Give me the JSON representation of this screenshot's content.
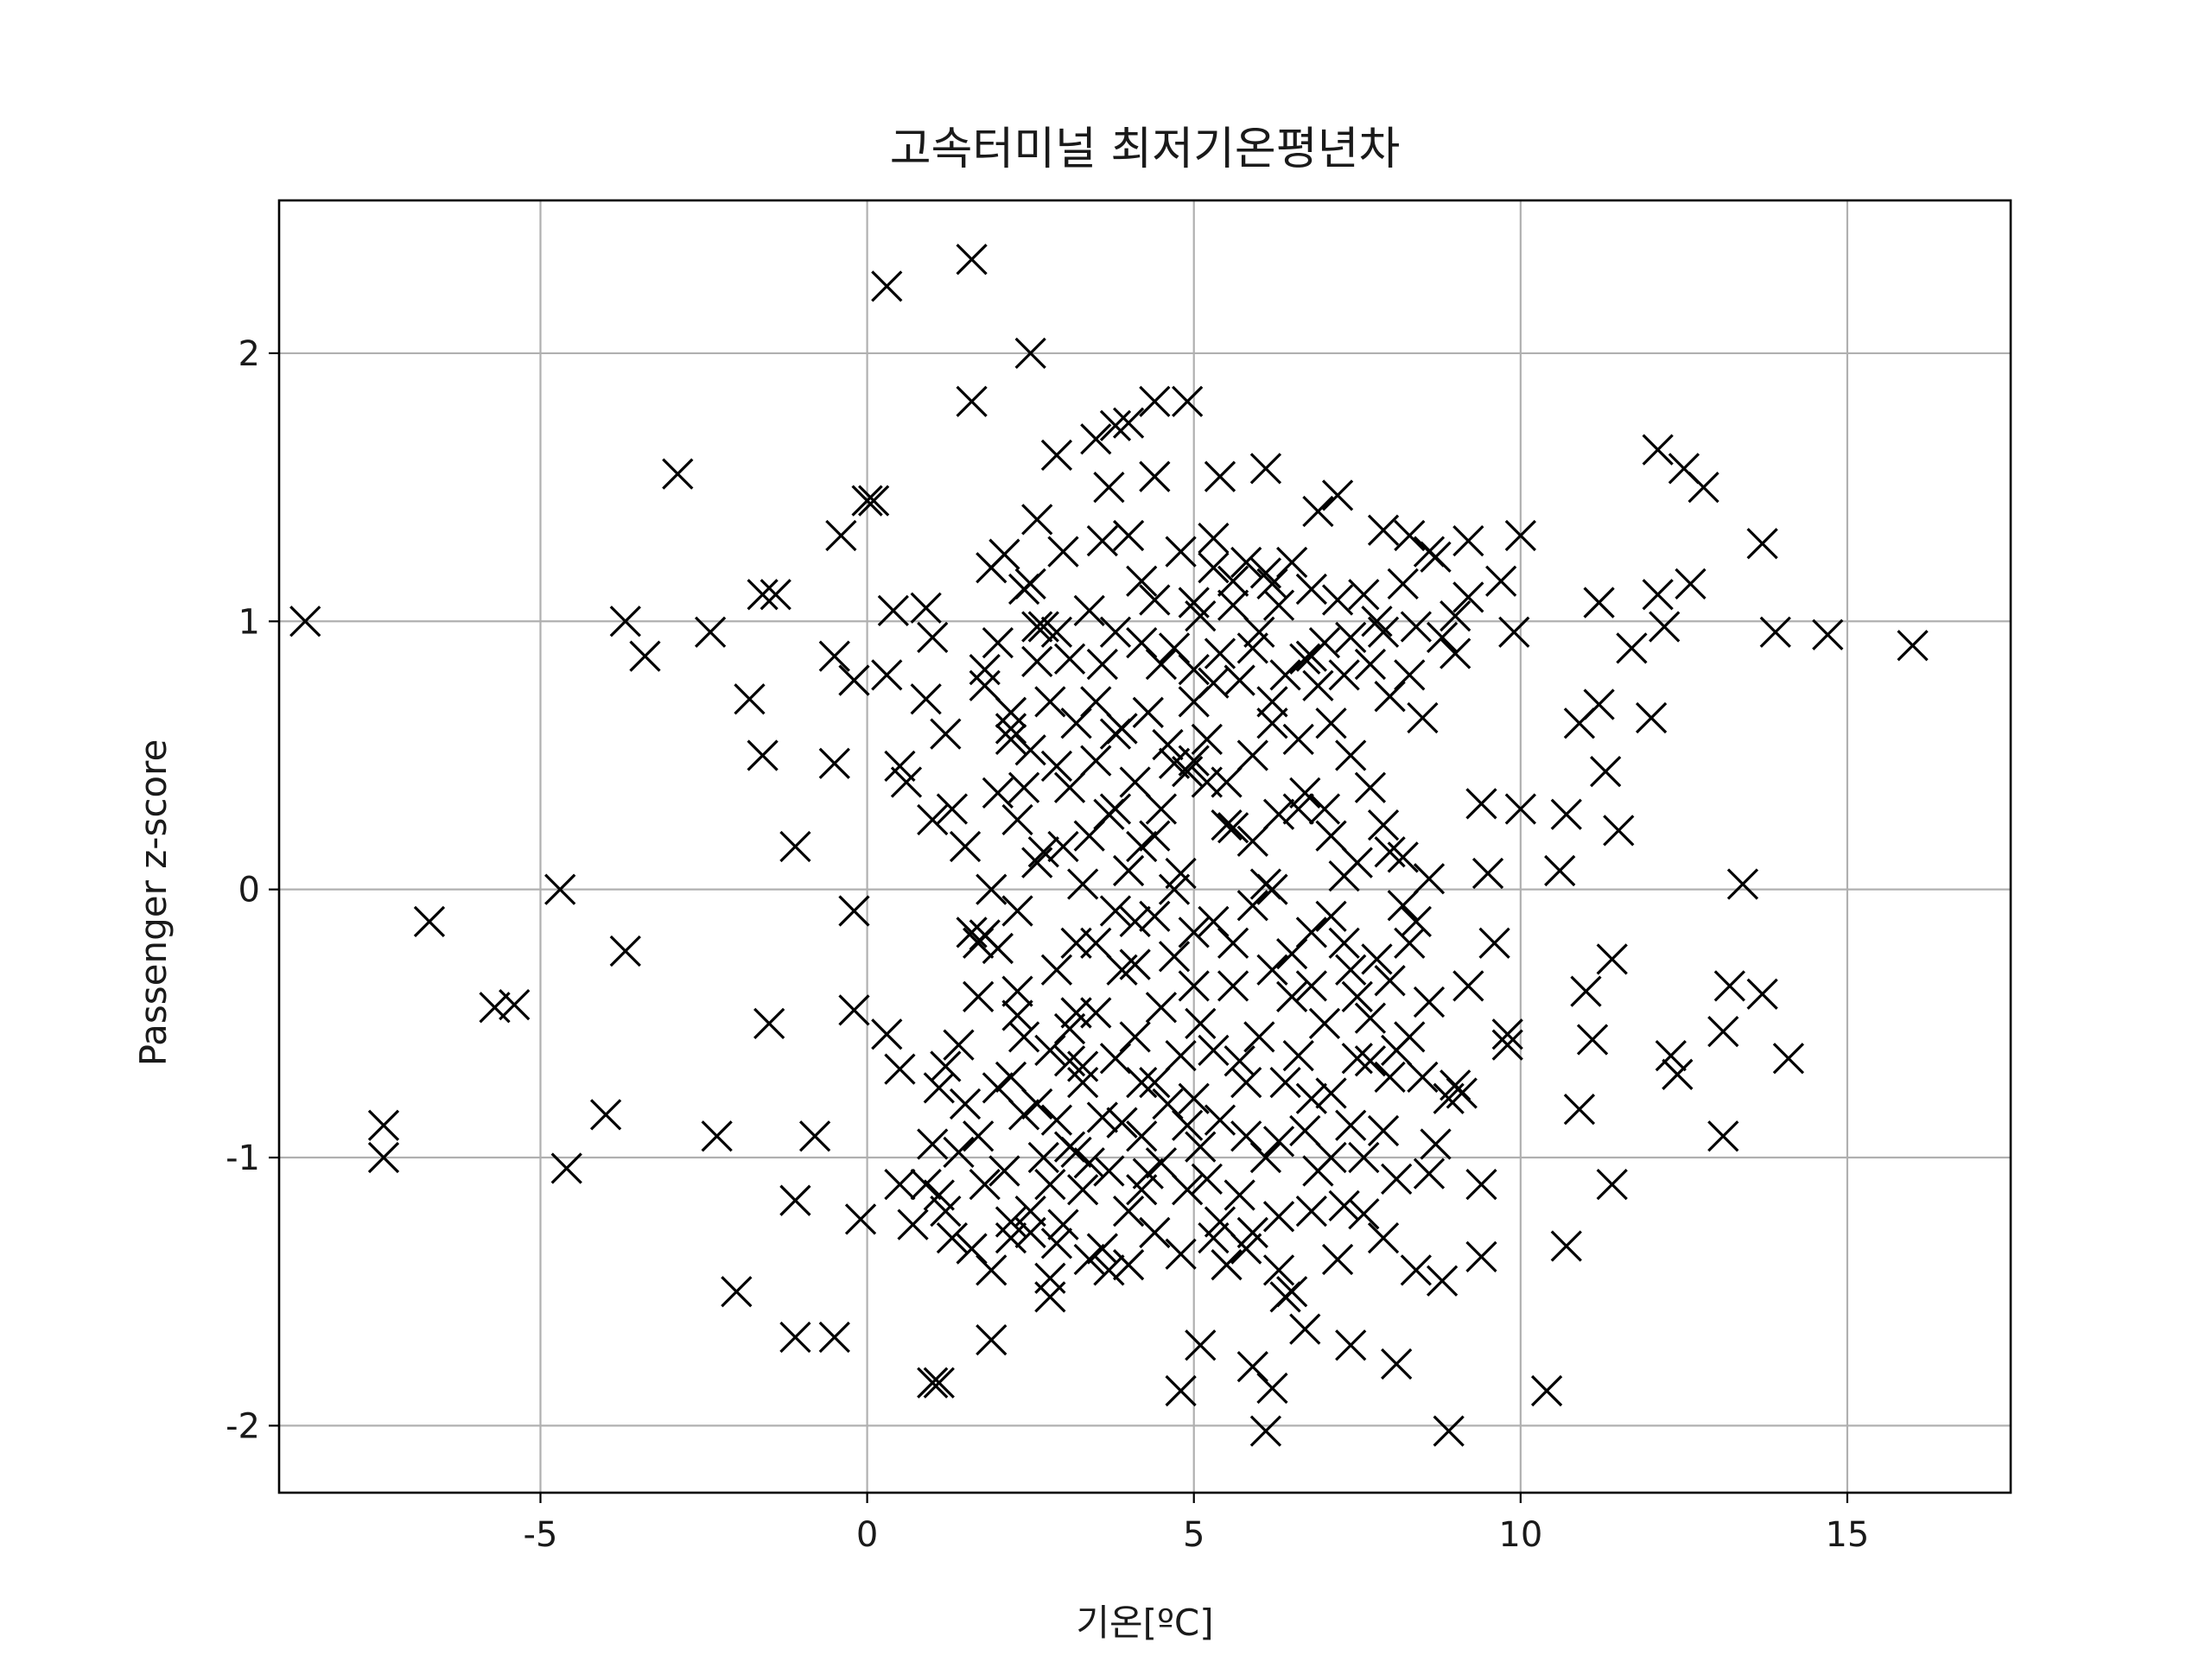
{
  "chart_data": {
    "type": "scatter",
    "title": "고속터미널 최저기온평년차",
    "xlabel": "기온[ºC]",
    "ylabel": "Passenger z-score",
    "xlim": [
      -9.0,
      17.5
    ],
    "ylim": [
      -2.25,
      2.57
    ],
    "xticks": [
      -5,
      0,
      5,
      10,
      15
    ],
    "xtick_labels": [
      "-5",
      "0",
      "5",
      "10",
      "15"
    ],
    "yticks": [
      -2,
      -1,
      0,
      1,
      2
    ],
    "ytick_labels": [
      "-2",
      "-1",
      "0",
      "1",
      "2"
    ],
    "grid": true,
    "legend": "none",
    "marker": "x",
    "marker_color": "#000000",
    "points": [
      [
        -8.6,
        1.0
      ],
      [
        -6.7,
        -0.12
      ],
      [
        -7.4,
        -0.88
      ],
      [
        -7.4,
        -1.0
      ],
      [
        -5.7,
        -0.44
      ],
      [
        -5.4,
        -0.43
      ],
      [
        -4.7,
        0.0
      ],
      [
        -4.6,
        -1.04
      ],
      [
        -4.0,
        -0.84
      ],
      [
        -3.7,
        1.0
      ],
      [
        -3.4,
        0.87
      ],
      [
        -3.7,
        -0.23
      ],
      [
        -2.9,
        1.55
      ],
      [
        -2.4,
        0.96
      ],
      [
        -2.3,
        -0.92
      ],
      [
        -2.0,
        -1.5
      ],
      [
        -1.8,
        0.71
      ],
      [
        -1.6,
        1.1
      ],
      [
        -1.4,
        1.1
      ],
      [
        -1.6,
        0.5
      ],
      [
        -1.5,
        -0.5
      ],
      [
        -1.1,
        0.16
      ],
      [
        -1.1,
        -1.16
      ],
      [
        -1.1,
        -1.67
      ],
      [
        -0.8,
        -0.92
      ],
      [
        -0.5,
        -1.67
      ],
      [
        -0.5,
        0.47
      ],
      [
        -0.4,
        1.32
      ],
      [
        -0.5,
        0.87
      ],
      [
        -0.2,
        0.78
      ],
      [
        -0.2,
        -0.08
      ],
      [
        -0.2,
        -0.45
      ],
      [
        -0.1,
        -1.23
      ],
      [
        0.0,
        1.45
      ],
      [
        0.1,
        1.45
      ],
      [
        0.3,
        2.25
      ],
      [
        0.3,
        -0.54
      ],
      [
        0.4,
        1.04
      ],
      [
        0.3,
        0.8
      ],
      [
        0.5,
        0.46
      ],
      [
        0.6,
        0.4
      ],
      [
        0.5,
        -0.67
      ],
      [
        0.5,
        -1.1
      ],
      [
        0.7,
        -1.25
      ],
      [
        0.9,
        0.71
      ],
      [
        0.9,
        1.05
      ],
      [
        1.0,
        0.94
      ],
      [
        1.0,
        0.26
      ],
      [
        1.0,
        -0.95
      ],
      [
        1.2,
        0.58
      ],
      [
        1.2,
        -0.66
      ],
      [
        1.3,
        0.3
      ],
      [
        1.1,
        -1.14
      ],
      [
        1.3,
        -1.3
      ],
      [
        1.5,
        0.16
      ],
      [
        1.6,
        2.35
      ],
      [
        1.6,
        1.82
      ],
      [
        1.6,
        -0.16
      ],
      [
        1.7,
        -0.2
      ],
      [
        1.8,
        -0.17
      ],
      [
        1.8,
        0.82
      ],
      [
        1.9,
        1.2
      ],
      [
        2.0,
        0.36
      ],
      [
        2.1,
        1.25
      ],
      [
        2.2,
        0.56
      ],
      [
        2.2,
        0.6
      ],
      [
        2.3,
        -0.47
      ],
      [
        2.2,
        -0.7
      ],
      [
        2.2,
        -1.3
      ],
      [
        2.4,
        0.38
      ],
      [
        2.4,
        -0.84
      ],
      [
        2.5,
        2.0
      ],
      [
        2.5,
        1.14
      ],
      [
        2.6,
        0.98
      ],
      [
        2.6,
        1.38
      ],
      [
        2.6,
        0.85
      ],
      [
        2.8,
        -0.6
      ],
      [
        2.8,
        -1.45
      ],
      [
        2.8,
        -1.1
      ],
      [
        2.9,
        1.62
      ],
      [
        2.9,
        0.46
      ],
      [
        2.9,
        0.96
      ],
      [
        3.0,
        0.16
      ],
      [
        3.1,
        -0.52
      ],
      [
        3.1,
        -0.96
      ],
      [
        3.2,
        -0.2
      ],
      [
        3.3,
        0.02
      ],
      [
        3.3,
        -0.66
      ],
      [
        3.4,
        -1.02
      ],
      [
        3.5,
        1.68
      ],
      [
        3.5,
        0.7
      ],
      [
        3.6,
        1.3
      ],
      [
        3.7,
        0.28
      ],
      [
        3.7,
        -1.42
      ],
      [
        3.8,
        1.73
      ],
      [
        3.8,
        0.58
      ],
      [
        3.9,
        -0.87
      ],
      [
        4.0,
        1.74
      ],
      [
        4.0,
        0.07
      ],
      [
        4.1,
        -0.12
      ],
      [
        4.2,
        1.15
      ],
      [
        4.2,
        -0.72
      ],
      [
        4.2,
        -1.12
      ],
      [
        4.4,
        1.82
      ],
      [
        4.4,
        1.54
      ],
      [
        4.4,
        0.2
      ],
      [
        4.5,
        0.84
      ],
      [
        4.5,
        -0.44
      ],
      [
        4.7,
        0.47
      ],
      [
        4.8,
        -0.62
      ],
      [
        4.8,
        -1.87
      ],
      [
        4.9,
        1.82
      ],
      [
        5.0,
        1.07
      ],
      [
        5.0,
        0.82
      ],
      [
        5.0,
        0.48
      ],
      [
        5.0,
        -0.36
      ],
      [
        5.1,
        -0.96
      ],
      [
        5.1,
        -1.7
      ],
      [
        5.3,
        1.31
      ],
      [
        5.3,
        0.77
      ],
      [
        5.4,
        1.54
      ],
      [
        5.4,
        -1.24
      ],
      [
        5.6,
        1.15
      ],
      [
        5.6,
        0.23
      ],
      [
        5.7,
        -0.64
      ],
      [
        5.8,
        -0.92
      ],
      [
        5.9,
        0.9
      ],
      [
        5.9,
        -1.78
      ],
      [
        6.1,
        1.57
      ],
      [
        6.1,
        0.02
      ],
      [
        6.1,
        -2.02
      ],
      [
        6.2,
        1.14
      ],
      [
        6.2,
        0.7
      ],
      [
        6.2,
        -1.86
      ],
      [
        6.3,
        -0.94
      ],
      [
        6.4,
        -1.52
      ],
      [
        6.5,
        -0.4
      ],
      [
        6.6,
        0.3
      ],
      [
        6.7,
        -1.64
      ],
      [
        6.8,
        0.87
      ],
      [
        6.8,
        -0.78
      ],
      [
        6.9,
        1.41
      ],
      [
        7.0,
        0.3
      ],
      [
        7.1,
        -1.0
      ],
      [
        7.2,
        1.47
      ],
      [
        7.3,
        0.05
      ],
      [
        7.4,
        0.5
      ],
      [
        7.4,
        -1.7
      ],
      [
        7.5,
        -0.63
      ],
      [
        7.6,
        -1.21
      ],
      [
        7.7,
        0.38
      ],
      [
        7.8,
        1.0
      ],
      [
        7.9,
        1.34
      ],
      [
        8.0,
        0.14
      ],
      [
        8.1,
        -0.6
      ],
      [
        8.1,
        -1.77
      ],
      [
        8.3,
        0.8
      ],
      [
        8.3,
        1.32
      ],
      [
        8.5,
        0.64
      ],
      [
        8.6,
        -1.06
      ],
      [
        8.7,
        1.24
      ],
      [
        8.8,
        -1.46
      ],
      [
        8.9,
        -2.02
      ],
      [
        9.0,
        0.88
      ],
      [
        9.1,
        -0.76
      ],
      [
        9.2,
        1.09
      ],
      [
        9.4,
        -1.37
      ],
      [
        9.4,
        0.32
      ],
      [
        9.5,
        0.06
      ],
      [
        9.7,
        1.15
      ],
      [
        9.8,
        -0.54
      ],
      [
        9.9,
        0.96
      ],
      [
        10.0,
        1.32
      ],
      [
        10.0,
        0.3
      ],
      [
        10.4,
        -1.87
      ],
      [
        10.6,
        0.07
      ],
      [
        10.7,
        0.28
      ],
      [
        10.7,
        -1.33
      ],
      [
        10.9,
        -0.82
      ],
      [
        10.9,
        0.62
      ],
      [
        11.0,
        -0.38
      ],
      [
        11.1,
        -0.56
      ],
      [
        11.2,
        1.07
      ],
      [
        11.2,
        0.69
      ],
      [
        11.3,
        0.44
      ],
      [
        11.4,
        -0.26
      ],
      [
        11.4,
        -1.1
      ],
      [
        11.5,
        0.22
      ],
      [
        11.7,
        0.9
      ],
      [
        12.0,
        0.64
      ],
      [
        12.1,
        1.64
      ],
      [
        12.1,
        1.1
      ],
      [
        12.2,
        0.98
      ],
      [
        12.3,
        -0.62
      ],
      [
        12.4,
        -0.69
      ],
      [
        12.5,
        1.57
      ],
      [
        12.6,
        1.14
      ],
      [
        12.8,
        1.5
      ],
      [
        13.1,
        -0.92
      ],
      [
        13.1,
        -0.53
      ],
      [
        13.2,
        -0.36
      ],
      [
        13.4,
        0.02
      ],
      [
        13.7,
        -0.39
      ],
      [
        13.7,
        1.29
      ],
      [
        13.9,
        0.96
      ],
      [
        14.1,
        -0.63
      ],
      [
        14.7,
        0.95
      ],
      [
        16.0,
        0.91
      ],
      [
        1.0,
        -1.84
      ],
      [
        1.1,
        -1.84
      ],
      [
        1.5,
        -0.8
      ],
      [
        1.7,
        -0.92
      ],
      [
        1.8,
        -1.1
      ],
      [
        1.9,
        -1.68
      ],
      [
        2.0,
        -0.74
      ],
      [
        2.1,
        -1.05
      ],
      [
        2.3,
        -0.38
      ],
      [
        2.4,
        -0.55
      ],
      [
        2.5,
        -1.2
      ],
      [
        2.6,
        -0.8
      ],
      [
        2.7,
        -1.0
      ],
      [
        2.8,
        -1.52
      ],
      [
        2.9,
        -0.86
      ],
      [
        3.0,
        -1.25
      ],
      [
        3.1,
        -0.64
      ],
      [
        3.2,
        -0.98
      ],
      [
        3.3,
        -0.72
      ],
      [
        3.4,
        -1.38
      ],
      [
        3.5,
        -0.46
      ],
      [
        3.6,
        -0.85
      ],
      [
        3.7,
        -1.05
      ],
      [
        3.8,
        -0.63
      ],
      [
        3.9,
        -0.3
      ],
      [
        4.0,
        -1.2
      ],
      [
        4.1,
        -0.55
      ],
      [
        4.2,
        -0.92
      ],
      [
        4.3,
        -1.06
      ],
      [
        4.4,
        -0.72
      ],
      [
        4.5,
        -1.02
      ],
      [
        4.6,
        -0.8
      ],
      [
        4.7,
        -0.25
      ],
      [
        4.8,
        -1.36
      ],
      [
        4.9,
        -0.88
      ],
      [
        5.0,
        -0.78
      ],
      [
        5.1,
        -0.5
      ],
      [
        5.2,
        -1.08
      ],
      [
        5.3,
        -0.6
      ],
      [
        5.4,
        -0.86
      ],
      [
        5.5,
        -1.4
      ],
      [
        5.6,
        -0.2
      ],
      [
        5.7,
        -1.14
      ],
      [
        5.8,
        -0.72
      ],
      [
        5.9,
        -1.28
      ],
      [
        6.0,
        -0.55
      ],
      [
        6.1,
        -1.0
      ],
      [
        6.2,
        -0.3
      ],
      [
        6.3,
        -1.22
      ],
      [
        6.4,
        -0.72
      ],
      [
        6.5,
        -1.5
      ],
      [
        6.6,
        -0.62
      ],
      [
        6.7,
        -0.9
      ],
      [
        6.8,
        -0.16
      ],
      [
        6.9,
        -1.05
      ],
      [
        7.0,
        -0.5
      ],
      [
        7.1,
        -0.76
      ],
      [
        7.2,
        -1.38
      ],
      [
        7.3,
        -0.2
      ],
      [
        7.4,
        -0.88
      ],
      [
        7.5,
        -0.4
      ],
      [
        7.6,
        -1.0
      ],
      [
        7.7,
        -0.64
      ],
      [
        7.8,
        -0.26
      ],
      [
        7.9,
        -0.9
      ],
      [
        8.0,
        -0.7
      ],
      [
        8.1,
        -1.08
      ],
      [
        8.2,
        -0.06
      ],
      [
        8.3,
        -0.55
      ],
      [
        8.4,
        -0.12
      ],
      [
        8.5,
        -0.7
      ],
      [
        8.7,
        -0.95
      ],
      [
        8.9,
        -0.78
      ],
      [
        9.0,
        -0.73
      ],
      [
        9.2,
        -0.36
      ],
      [
        9.4,
        -1.1
      ],
      [
        9.6,
        -0.2
      ],
      [
        9.8,
        -0.58
      ],
      [
        0.9,
        -1.1
      ],
      [
        1.2,
        -1.2
      ],
      [
        1.4,
        -0.98
      ],
      [
        1.6,
        -1.34
      ],
      [
        1.9,
        -1.42
      ],
      [
        2.2,
        -1.24
      ],
      [
        2.5,
        -1.28
      ],
      [
        2.9,
        -1.32
      ],
      [
        3.3,
        -1.12
      ],
      [
        3.6,
        -1.34
      ],
      [
        4.0,
        -1.4
      ],
      [
        4.4,
        -1.28
      ],
      [
        4.9,
        -1.12
      ],
      [
        5.3,
        -1.3
      ],
      [
        5.8,
        -1.34
      ],
      [
        6.3,
        -1.42
      ],
      [
        6.8,
        -1.2
      ],
      [
        7.3,
        -1.18
      ],
      [
        7.9,
        -1.3
      ],
      [
        8.4,
        -1.42
      ],
      [
        1.1,
        -0.74
      ],
      [
        1.4,
        -0.58
      ],
      [
        1.7,
        -0.4
      ],
      [
        2.0,
        -0.22
      ],
      [
        2.3,
        -0.08
      ],
      [
        2.6,
        0.1
      ],
      [
        2.9,
        -0.3
      ],
      [
        3.2,
        -0.46
      ],
      [
        3.5,
        -0.2
      ],
      [
        3.8,
        -0.08
      ],
      [
        4.1,
        -0.28
      ],
      [
        4.4,
        -0.1
      ],
      [
        4.7,
        0.0
      ],
      [
        5.0,
        -0.16
      ],
      [
        5.3,
        -0.12
      ],
      [
        5.6,
        -0.36
      ],
      [
        5.9,
        -0.06
      ],
      [
        6.2,
        0.0
      ],
      [
        6.5,
        -0.24
      ],
      [
        6.8,
        -0.36
      ],
      [
        7.1,
        -0.1
      ],
      [
        7.4,
        -0.3
      ],
      [
        7.7,
        -0.48
      ],
      [
        8.0,
        -0.34
      ],
      [
        8.3,
        -0.2
      ],
      [
        8.6,
        -0.42
      ],
      [
        1.8,
        0.76
      ],
      [
        2.0,
        0.92
      ],
      [
        2.2,
        0.66
      ],
      [
        2.4,
        1.12
      ],
      [
        2.5,
        0.52
      ],
      [
        2.7,
        0.98
      ],
      [
        2.8,
        0.7
      ],
      [
        3.0,
        1.26
      ],
      [
        3.1,
        0.86
      ],
      [
        3.2,
        0.62
      ],
      [
        3.4,
        1.04
      ],
      [
        3.5,
        0.48
      ],
      [
        3.6,
        0.84
      ],
      [
        3.7,
        1.5
      ],
      [
        3.8,
        0.96
      ],
      [
        3.9,
        0.6
      ],
      [
        4.0,
        1.32
      ],
      [
        4.1,
        0.4
      ],
      [
        4.2,
        0.92
      ],
      [
        4.3,
        0.66
      ],
      [
        4.4,
        1.08
      ],
      [
        4.6,
        0.54
      ],
      [
        4.7,
        0.9
      ],
      [
        4.8,
        1.26
      ],
      [
        4.9,
        0.44
      ],
      [
        5.0,
        0.7
      ],
      [
        5.1,
        1.02
      ],
      [
        5.2,
        0.56
      ],
      [
        5.3,
        1.2
      ],
      [
        5.4,
        0.88
      ],
      [
        5.5,
        0.4
      ],
      [
        5.6,
        1.06
      ],
      [
        5.7,
        0.78
      ],
      [
        5.8,
        1.22
      ],
      [
        5.9,
        0.5
      ],
      [
        6.0,
        0.96
      ],
      [
        6.1,
        1.18
      ],
      [
        6.2,
        0.62
      ],
      [
        6.3,
        1.06
      ],
      [
        6.4,
        0.8
      ],
      [
        6.5,
        1.22
      ],
      [
        6.6,
        0.56
      ],
      [
        6.7,
        0.86
      ],
      [
        6.8,
        1.12
      ],
      [
        6.9,
        0.76
      ],
      [
        7.0,
        0.92
      ],
      [
        7.1,
        0.62
      ],
      [
        7.2,
        1.08
      ],
      [
        7.3,
        0.8
      ],
      [
        7.4,
        0.94
      ],
      [
        7.6,
        1.1
      ],
      [
        7.7,
        0.84
      ],
      [
        7.9,
        0.96
      ],
      [
        8.0,
        0.72
      ],
      [
        8.2,
        1.14
      ],
      [
        8.4,
        0.98
      ],
      [
        8.6,
        1.26
      ],
      [
        8.8,
        0.94
      ],
      [
        9.0,
        1.02
      ],
      [
        9.2,
        1.3
      ],
      [
        1.9,
        0.0
      ],
      [
        2.3,
        0.26
      ],
      [
        2.7,
        0.14
      ],
      [
        3.1,
        0.38
      ],
      [
        3.4,
        0.2
      ],
      [
        3.8,
        0.3
      ],
      [
        4.2,
        0.16
      ],
      [
        4.5,
        0.3
      ],
      [
        4.8,
        0.06
      ],
      [
        5.2,
        0.4
      ],
      [
        5.5,
        0.24
      ],
      [
        5.9,
        0.18
      ],
      [
        6.3,
        0.28
      ],
      [
        6.7,
        0.36
      ],
      [
        7.1,
        0.2
      ],
      [
        7.5,
        0.1
      ],
      [
        7.9,
        0.24
      ],
      [
        8.2,
        0.12
      ],
      [
        8.6,
        0.04
      ]
    ]
  }
}
